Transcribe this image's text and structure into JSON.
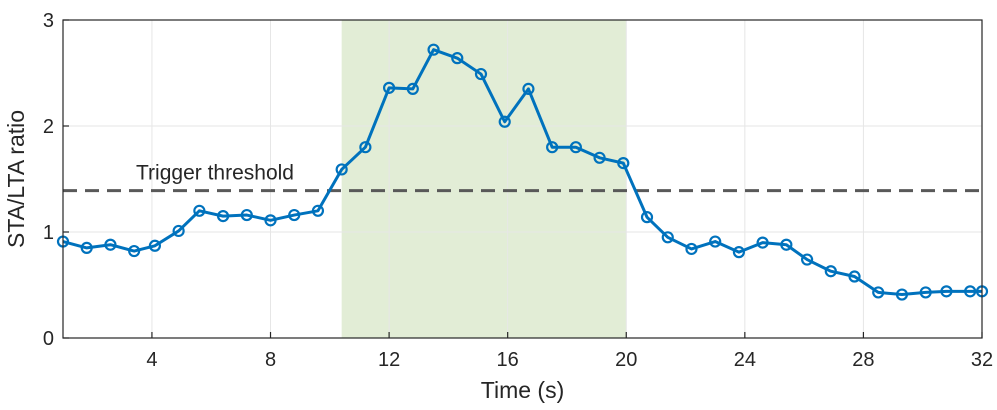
{
  "chart_data": {
    "type": "line",
    "title": "",
    "xlabel": "Time (s)",
    "ylabel": "STA/LTA ratio",
    "xlim": [
      1,
      32
    ],
    "ylim": [
      0,
      3
    ],
    "xticks": [
      4,
      8,
      12,
      16,
      20,
      24,
      28,
      32
    ],
    "yticks": [
      0,
      1,
      2,
      3
    ],
    "grid": true,
    "series": [
      {
        "color": "#0072BD",
        "marker": "circle",
        "x": [
          1.0,
          1.8,
          2.6,
          3.4,
          4.1,
          4.9,
          5.6,
          6.4,
          7.2,
          8.0,
          8.8,
          9.6,
          10.4,
          11.2,
          12.0,
          12.8,
          13.5,
          14.3,
          15.1,
          15.9,
          16.7,
          17.5,
          18.3,
          19.1,
          19.9,
          20.7,
          21.4,
          22.2,
          23.0,
          23.8,
          24.6,
          25.4,
          26.1,
          26.9,
          27.7,
          28.5,
          29.3,
          30.1,
          30.8,
          31.6,
          32.0
        ],
        "y": [
          0.91,
          0.85,
          0.88,
          0.82,
          0.87,
          1.01,
          1.2,
          1.15,
          1.16,
          1.11,
          1.16,
          1.2,
          1.59,
          1.8,
          2.36,
          2.35,
          2.72,
          2.64,
          2.49,
          2.04,
          2.35,
          1.8,
          1.8,
          1.7,
          1.65,
          1.14,
          0.95,
          0.84,
          0.91,
          0.81,
          0.9,
          0.88,
          0.74,
          0.63,
          0.58,
          0.43,
          0.41,
          0.43,
          0.44,
          0.44,
          0.44
        ]
      }
    ],
    "threshold": {
      "label": "Trigger threshold",
      "y": 1.39,
      "color": "#595959",
      "style": "dashed"
    },
    "highlight_region": {
      "x_start": 10.4,
      "x_end": 20.0,
      "color": "#E2EDD6"
    }
  }
}
